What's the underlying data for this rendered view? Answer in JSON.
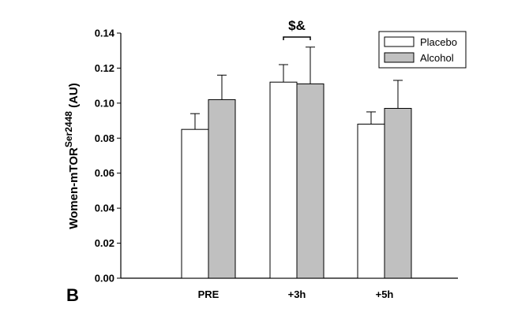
{
  "chart_data": {
    "type": "bar",
    "panel_label": "B",
    "categories": [
      "PRE",
      "+3h",
      "+5h"
    ],
    "series": [
      {
        "name": "Placebo",
        "values": [
          0.085,
          0.112,
          0.088
        ],
        "errors": [
          0.009,
          0.01,
          0.007
        ],
        "color": "#ffffff"
      },
      {
        "name": "Alcohol",
        "values": [
          0.102,
          0.111,
          0.097
        ],
        "errors": [
          0.014,
          0.021,
          0.016
        ],
        "color": "#c0c0c0"
      }
    ],
    "ylabel_main": "Women-mTOR",
    "ylabel_sup": "Ser2448",
    "ylabel_unit": " (AU)",
    "xlabel": "",
    "ylim": [
      0,
      0.14
    ],
    "yticks": [
      "0.00",
      "0.02",
      "0.04",
      "0.06",
      "0.08",
      "0.10",
      "0.12",
      "0.14"
    ],
    "annotation": {
      "text": "$&",
      "category": "+3h"
    },
    "legend_position": "top-right",
    "grid": false
  }
}
